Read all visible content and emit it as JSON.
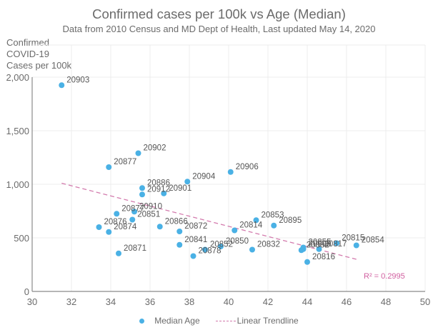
{
  "chart_data": {
    "type": "scatter",
    "title": "Confirmed cases per 100k vs Age (Median)",
    "subtitle": "Data from 2010 Census and MD Dept of Health, Last updated May 14, 2020",
    "xlabel": "",
    "ylabel": "Confirmed\nCOVID-19\nCases per 100k",
    "xlim": [
      30,
      50
    ],
    "ylim": [
      0,
      2300
    ],
    "xticks": [
      "30",
      "32",
      "34",
      "36",
      "38",
      "40",
      "42",
      "44",
      "46",
      "48",
      "50"
    ],
    "yticks": [
      "0",
      "500",
      "1,000",
      "1,500",
      "2,000"
    ],
    "xtick_values": [
      30,
      32,
      34,
      36,
      38,
      40,
      42,
      44,
      46,
      48,
      50
    ],
    "ytick_values": [
      0,
      500,
      1000,
      1500,
      2000
    ],
    "grid": true,
    "series": [
      {
        "name": "Median Age",
        "color": "#4ab1e5",
        "points": [
          {
            "label": "20903",
            "x": 31.5,
            "y": 1925
          },
          {
            "label": "20902",
            "x": 35.4,
            "y": 1290
          },
          {
            "label": "20877",
            "x": 33.9,
            "y": 1160
          },
          {
            "label": "20906",
            "x": 40.1,
            "y": 1115
          },
          {
            "label": "20904",
            "x": 37.9,
            "y": 1025
          },
          {
            "label": "20886",
            "x": 35.6,
            "y": 965
          },
          {
            "label": "20912",
            "x": 35.6,
            "y": 905
          },
          {
            "label": "20901",
            "x": 36.7,
            "y": 915
          },
          {
            "label": "20877b",
            "x": 34.3,
            "y": 725
          },
          {
            "label": "20910",
            "x": 35.2,
            "y": 745
          },
          {
            "label": "20851",
            "x": 35.1,
            "y": 670
          },
          {
            "label": "20876",
            "x": 33.4,
            "y": 600
          },
          {
            "label": "20874",
            "x": 33.9,
            "y": 555
          },
          {
            "label": "20866",
            "x": 36.5,
            "y": 605
          },
          {
            "label": "20872",
            "x": 37.5,
            "y": 560
          },
          {
            "label": "20871",
            "x": 34.4,
            "y": 355
          },
          {
            "label": "20841",
            "x": 37.5,
            "y": 435
          },
          {
            "label": "20878",
            "x": 38.2,
            "y": 330
          },
          {
            "label": "20852",
            "x": 38.8,
            "y": 390
          },
          {
            "label": "20850",
            "x": 39.6,
            "y": 420
          },
          {
            "label": "20814",
            "x": 40.3,
            "y": 570
          },
          {
            "label": "20853",
            "x": 41.4,
            "y": 665
          },
          {
            "label": "20895",
            "x": 42.3,
            "y": 615
          },
          {
            "label": "20832",
            "x": 41.2,
            "y": 390
          },
          {
            "label": "20855",
            "x": 43.8,
            "y": 410
          },
          {
            "label": "20882",
            "x": 43.7,
            "y": 385
          },
          {
            "label": "20817",
            "x": 44.6,
            "y": 395
          },
          {
            "label": "20816",
            "x": 44.0,
            "y": 275
          },
          {
            "label": "20815",
            "x": 45.5,
            "y": 450
          },
          {
            "label": "20854",
            "x": 46.5,
            "y": 430
          },
          {
            "label": "20905",
            "x": 43.8,
            "y": 395
          }
        ],
        "display_labels": [
          "20903",
          "20902",
          "20877",
          "20906",
          "20904",
          "20886",
          "20912",
          "20901",
          "20877",
          "20910",
          "20851",
          "20876",
          "20874",
          "20866",
          "20872",
          "20871",
          "20841",
          "20878",
          "20852",
          "20850",
          "20814",
          "20853",
          "20895",
          "20832",
          "20855",
          "20882",
          "20817",
          "20816",
          "20815",
          "20854",
          "20905"
        ]
      }
    ],
    "trendline": {
      "name": "Linear Trendline",
      "type": "linear",
      "color": "#d37aad",
      "x_range": [
        31.5,
        46.5
      ],
      "y_start": 1010,
      "y_end": 300,
      "r_squared_label": "R² = 0.2995"
    },
    "legend": {
      "position": "bottom",
      "entries": [
        "Median Age",
        "Linear Trendline"
      ]
    }
  }
}
